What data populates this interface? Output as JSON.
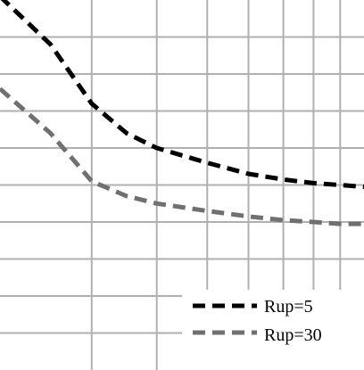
{
  "chart_data": {
    "type": "line",
    "grid": true,
    "x_scale": "log",
    "xlim": [
      2,
      10
    ],
    "ylim": [
      0,
      10
    ],
    "x_gridlines": [
      3,
      4,
      5,
      6,
      7,
      8,
      9
    ],
    "y_gridlines": [
      1,
      2,
      3,
      4,
      5,
      6,
      7,
      8,
      9
    ],
    "legend_position": "bottom-right",
    "series": [
      {
        "name": "Rup=5",
        "color": "#000000",
        "dash": "dashed",
        "x": [
          2,
          2.5,
          3,
          3.5,
          4,
          5,
          6,
          7,
          8,
          9,
          10
        ],
        "y": [
          10.1,
          8.8,
          7.2,
          6.4,
          6.0,
          5.6,
          5.3,
          5.15,
          5.05,
          5.0,
          4.95
        ]
      },
      {
        "name": "Rup=30",
        "color": "#707070",
        "dash": "dashed",
        "x": [
          2,
          2.5,
          3,
          3.5,
          4,
          5,
          6,
          7,
          8,
          9,
          10
        ],
        "y": [
          7.6,
          6.4,
          5.1,
          4.7,
          4.5,
          4.3,
          4.15,
          4.05,
          4.0,
          3.95,
          3.95
        ]
      }
    ]
  }
}
